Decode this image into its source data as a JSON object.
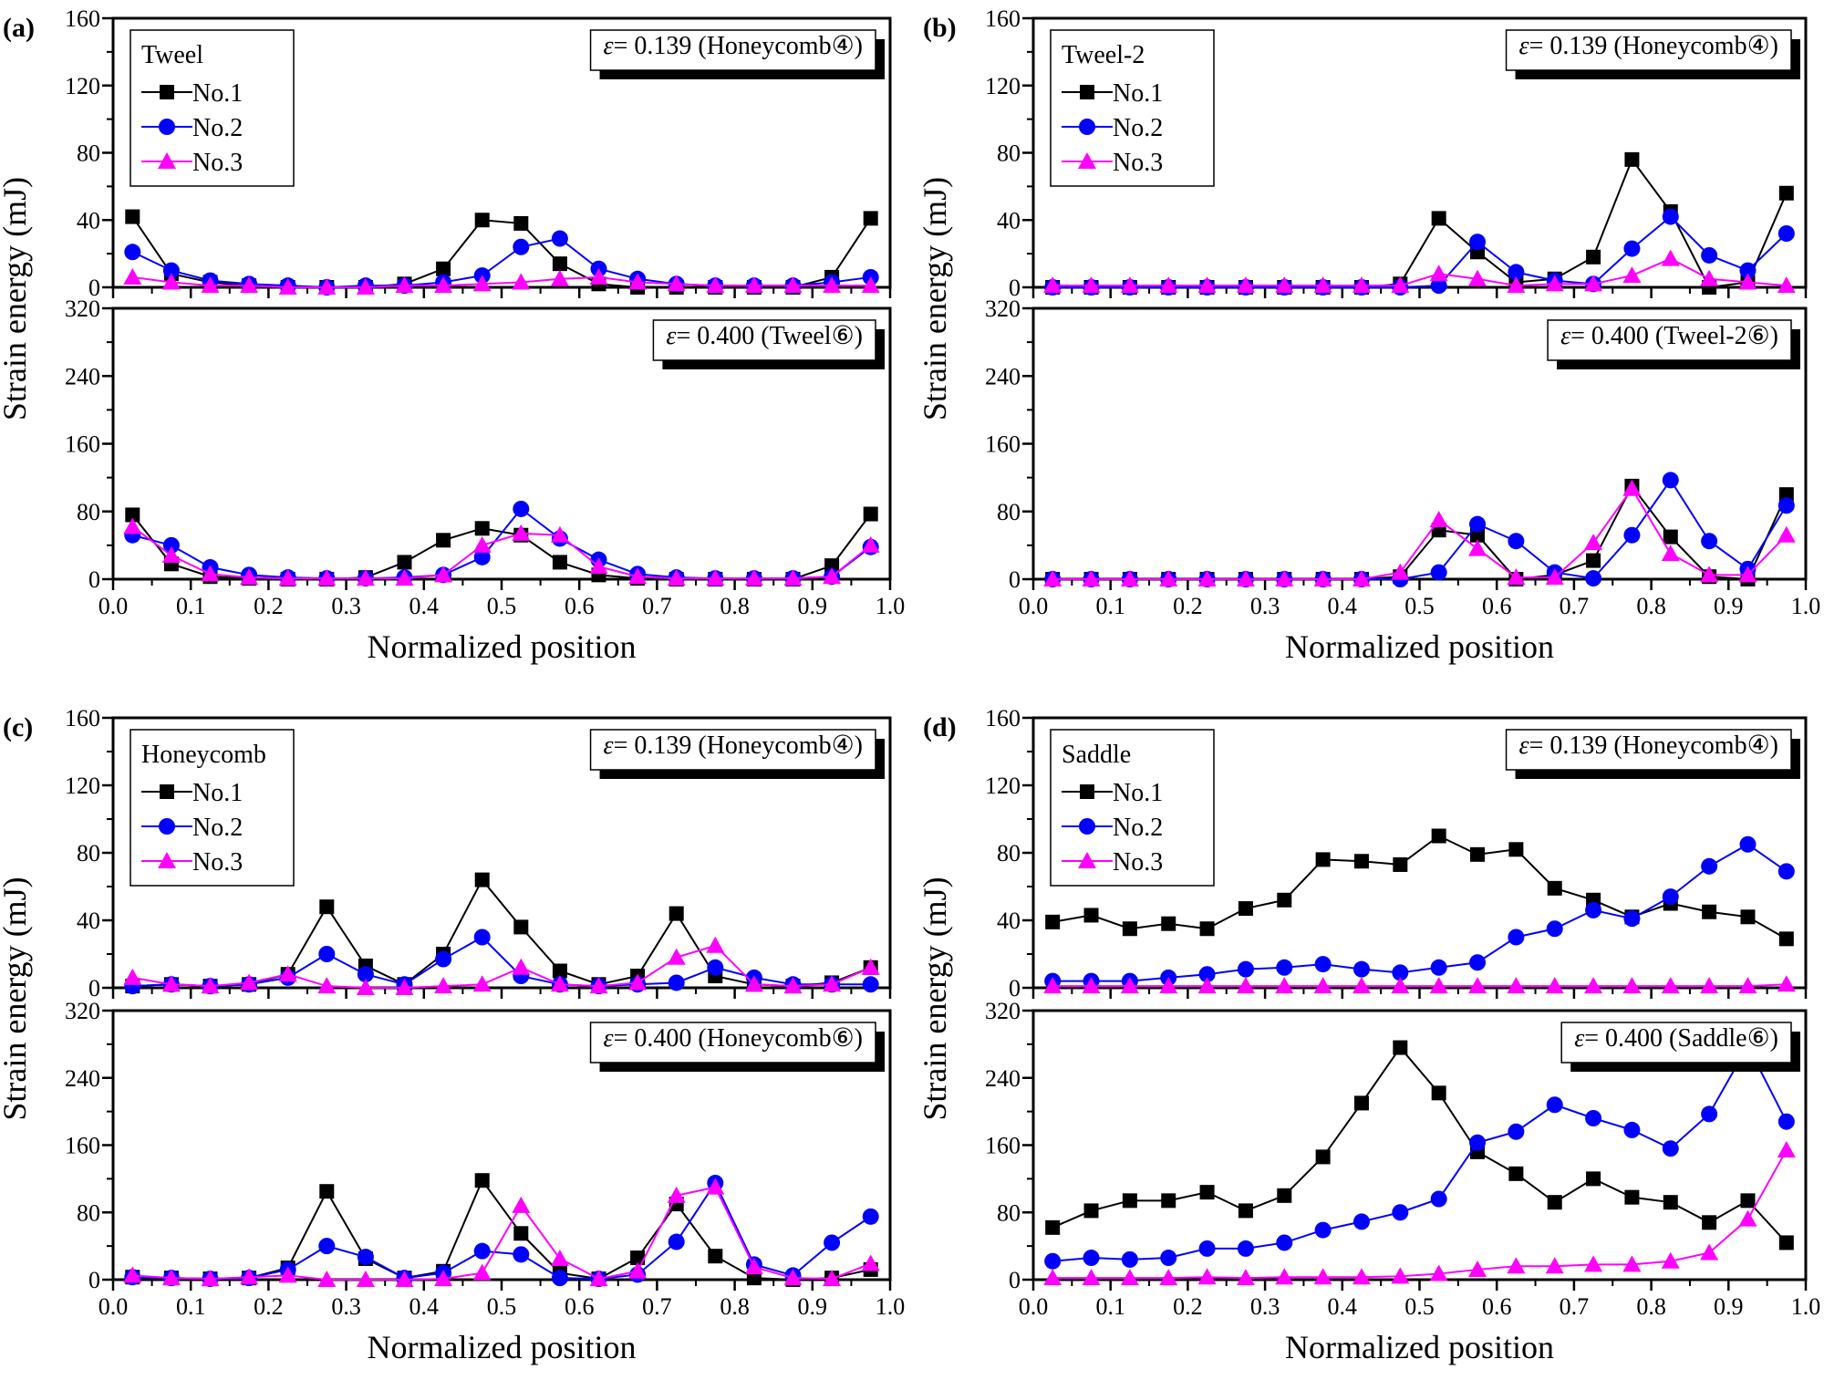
{
  "chart_data": [
    {
      "type": "line",
      "panel_label": "(a)",
      "legend_title": "Tweel",
      "xlabel": "Normalized position",
      "ylabel": "Strain energy (mJ)",
      "xlim": [
        0,
        1
      ],
      "xticks": [
        "0.0",
        "0.1",
        "0.2",
        "0.3",
        "0.4",
        "0.5",
        "0.6",
        "0.7",
        "0.8",
        "0.9",
        "1.0"
      ],
      "x": [
        0.025,
        0.075,
        0.125,
        0.175,
        0.225,
        0.275,
        0.325,
        0.375,
        0.425,
        0.475,
        0.525,
        0.575,
        0.625,
        0.675,
        0.725,
        0.775,
        0.825,
        0.875,
        0.925,
        0.975
      ],
      "legend_placement": "top-left",
      "subplots": [
        {
          "annotation_symbol": "ε",
          "annotation": "= 0.139 (Honeycomb④)",
          "ylim": [
            0,
            160
          ],
          "yticks": [
            "0",
            "40",
            "80",
            "120",
            "160"
          ],
          "series": [
            {
              "name": "No.1",
              "values": [
                42,
                8,
                3,
                1,
                0,
                0,
                0,
                2,
                11,
                40,
                38,
                14,
                2,
                0,
                0,
                0,
                0,
                0,
                6,
                41
              ]
            },
            {
              "name": "No.2",
              "values": [
                21,
                10,
                4,
                2,
                1,
                0,
                1,
                1,
                3,
                7,
                24,
                29,
                11,
                5,
                2,
                1,
                1,
                1,
                3,
                6
              ]
            },
            {
              "name": "No.3",
              "values": [
                6,
                3,
                1,
                1,
                0,
                0,
                0,
                1,
                1,
                2,
                3,
                5,
                6,
                3,
                2,
                1,
                1,
                1,
                1,
                1
              ]
            }
          ]
        },
        {
          "annotation_symbol": "ε",
          "annotation": "= 0.400 (Tweel⑥)",
          "ylim": [
            0,
            320
          ],
          "yticks": [
            "0",
            "80",
            "160",
            "240",
            "320"
          ],
          "series": [
            {
              "name": "No.1",
              "values": [
                76,
                18,
                3,
                1,
                0,
                0,
                2,
                20,
                46,
                60,
                52,
                20,
                5,
                1,
                0,
                0,
                0,
                0,
                16,
                77
              ]
            },
            {
              "name": "No.2",
              "values": [
                52,
                40,
                14,
                5,
                2,
                1,
                1,
                2,
                5,
                26,
                83,
                48,
                23,
                6,
                2,
                1,
                1,
                1,
                3,
                38
              ]
            },
            {
              "name": "No.3",
              "values": [
                62,
                28,
                6,
                2,
                1,
                1,
                1,
                1,
                5,
                40,
                54,
                52,
                15,
                3,
                1,
                1,
                1,
                1,
                3,
                40
              ]
            }
          ]
        }
      ]
    },
    {
      "type": "line",
      "panel_label": "(b)",
      "legend_title": "Tweel-2",
      "xlabel": "Normalized position",
      "ylabel": "Strain energy (mJ)",
      "xlim": [
        0,
        1
      ],
      "xticks": [
        "0.0",
        "0.1",
        "0.2",
        "0.3",
        "0.4",
        "0.5",
        "0.6",
        "0.7",
        "0.8",
        "0.9",
        "1.0"
      ],
      "x": [
        0.025,
        0.075,
        0.125,
        0.175,
        0.225,
        0.275,
        0.325,
        0.375,
        0.425,
        0.475,
        0.525,
        0.575,
        0.625,
        0.675,
        0.725,
        0.775,
        0.825,
        0.875,
        0.925,
        0.975
      ],
      "legend_placement": "top-left",
      "subplots": [
        {
          "annotation_symbol": "ε",
          "annotation": "= 0.139 (Honeycomb④)",
          "ylim": [
            0,
            160
          ],
          "yticks": [
            "0",
            "40",
            "80",
            "120",
            "160"
          ],
          "series": [
            {
              "name": "No.1",
              "values": [
                0,
                0,
                0,
                0,
                0,
                0,
                0,
                0,
                0,
                2,
                41,
                21,
                3,
                5,
                18,
                76,
                45,
                0,
                3,
                56
              ]
            },
            {
              "name": "No.2",
              "values": [
                0,
                0,
                0,
                0,
                0,
                0,
                0,
                0,
                0,
                0,
                1,
                27,
                9,
                4,
                2,
                23,
                42,
                19,
                10,
                32
              ]
            },
            {
              "name": "No.3",
              "values": [
                1,
                1,
                1,
                1,
                1,
                1,
                1,
                1,
                1,
                1,
                8,
                5,
                1,
                2,
                2,
                7,
                17,
                5,
                3,
                1
              ]
            }
          ]
        },
        {
          "annotation_symbol": "ε",
          "annotation": "= 0.400 (Tweel-2⑥)",
          "ylim": [
            0,
            320
          ],
          "yticks": [
            "0",
            "80",
            "160",
            "240",
            "320"
          ],
          "series": [
            {
              "name": "No.1",
              "values": [
                0,
                0,
                0,
                0,
                0,
                0,
                0,
                0,
                0,
                3,
                58,
                52,
                0,
                5,
                22,
                110,
                50,
                3,
                0,
                100
              ]
            },
            {
              "name": "No.2",
              "values": [
                0,
                0,
                0,
                0,
                0,
                0,
                0,
                0,
                0,
                0,
                8,
                65,
                45,
                8,
                1,
                52,
                117,
                45,
                12,
                87
              ]
            },
            {
              "name": "No.3",
              "values": [
                0,
                0,
                0,
                0,
                0,
                0,
                0,
                0,
                0,
                8,
                70,
                36,
                2,
                2,
                43,
                107,
                30,
                5,
                5,
                52
              ]
            }
          ]
        }
      ]
    },
    {
      "type": "line",
      "panel_label": "(c)",
      "legend_title": "Honeycomb",
      "xlabel": "Normalized position",
      "ylabel": "Strain energy (mJ)",
      "xlim": [
        0,
        1
      ],
      "xticks": [
        "0.0",
        "0.1",
        "0.2",
        "0.3",
        "0.4",
        "0.5",
        "0.6",
        "0.7",
        "0.8",
        "0.9",
        "1.0"
      ],
      "x": [
        0.025,
        0.075,
        0.125,
        0.175,
        0.225,
        0.275,
        0.325,
        0.375,
        0.425,
        0.475,
        0.525,
        0.575,
        0.625,
        0.675,
        0.725,
        0.775,
        0.825,
        0.875,
        0.925,
        0.975
      ],
      "legend_placement": "top-left",
      "subplots": [
        {
          "annotation_symbol": "ε",
          "annotation": "= 0.139 (Honeycomb④)",
          "ylim": [
            0,
            160
          ],
          "yticks": [
            "0",
            "40",
            "80",
            "120",
            "160"
          ],
          "series": [
            {
              "name": "No.1",
              "values": [
                1,
                2,
                1,
                2,
                8,
                48,
                13,
                2,
                20,
                64,
                36,
                10,
                2,
                7,
                44,
                7,
                2,
                1,
                3,
                12
              ]
            },
            {
              "name": "No.2",
              "values": [
                1,
                2,
                1,
                2,
                6,
                20,
                8,
                2,
                17,
                30,
                7,
                2,
                1,
                2,
                3,
                12,
                6,
                2,
                2,
                2
              ]
            },
            {
              "name": "No.3",
              "values": [
                6,
                2,
                1,
                3,
                8,
                1,
                0,
                0,
                1,
                2,
                12,
                2,
                1,
                3,
                18,
                25,
                2,
                1,
                2,
                12
              ]
            }
          ]
        },
        {
          "annotation_symbol": "ε",
          "annotation": "= 0.400 (Honeycomb⑥)",
          "ylim": [
            0,
            320
          ],
          "yticks": [
            "0",
            "80",
            "160",
            "240",
            "320"
          ],
          "series": [
            {
              "name": "No.1",
              "values": [
                3,
                2,
                1,
                2,
                14,
                105,
                25,
                2,
                10,
                118,
                55,
                8,
                1,
                26,
                90,
                28,
                2,
                0,
                2,
                12
              ]
            },
            {
              "name": "No.2",
              "values": [
                3,
                2,
                1,
                2,
                12,
                40,
                27,
                2,
                8,
                34,
                30,
                2,
                1,
                6,
                45,
                115,
                18,
                5,
                44,
                75
              ]
            },
            {
              "name": "No.3",
              "values": [
                5,
                2,
                1,
                3,
                5,
                0,
                0,
                0,
                1,
                8,
                88,
                25,
                1,
                10,
                100,
                110,
                15,
                2,
                1,
                19
              ]
            }
          ]
        }
      ]
    },
    {
      "type": "line",
      "panel_label": "(d)",
      "legend_title": "Saddle",
      "xlabel": "Normalized position",
      "ylabel": "Strain energy (mJ)",
      "xlim": [
        0,
        1
      ],
      "xticks": [
        "0.0",
        "0.1",
        "0.2",
        "0.3",
        "0.4",
        "0.5",
        "0.6",
        "0.7",
        "0.8",
        "0.9",
        "1.0"
      ],
      "x": [
        0.025,
        0.075,
        0.125,
        0.175,
        0.225,
        0.275,
        0.325,
        0.375,
        0.425,
        0.475,
        0.525,
        0.575,
        0.625,
        0.675,
        0.725,
        0.775,
        0.825,
        0.875,
        0.925,
        0.975
      ],
      "legend_placement": "top-left",
      "subplots": [
        {
          "annotation_symbol": "ε",
          "annotation": "= 0.139 (Honeycomb④)",
          "ylim": [
            0,
            160
          ],
          "yticks": [
            "0",
            "40",
            "80",
            "120",
            "160"
          ],
          "series": [
            {
              "name": "No.1",
              "values": [
                39,
                43,
                35,
                38,
                35,
                47,
                52,
                76,
                75,
                73,
                90,
                79,
                82,
                59,
                52,
                42,
                50,
                45,
                42,
                29
              ]
            },
            {
              "name": "No.2",
              "values": [
                4,
                4,
                4,
                6,
                8,
                11,
                12,
                14,
                11,
                9,
                12,
                15,
                30,
                35,
                46,
                41,
                54,
                72,
                85,
                69
              ]
            },
            {
              "name": "No.3",
              "values": [
                1,
                1,
                1,
                1,
                1,
                1,
                1,
                1,
                1,
                1,
                1,
                1,
                1,
                1,
                1,
                1,
                1,
                1,
                1,
                2
              ]
            }
          ]
        },
        {
          "annotation_symbol": "ε",
          "annotation": "= 0.400 (Saddle⑥)",
          "ylim": [
            0,
            320
          ],
          "yticks": [
            "0",
            "80",
            "160",
            "240",
            "320"
          ],
          "series": [
            {
              "name": "No.1",
              "values": [
                62,
                82,
                94,
                94,
                104,
                82,
                100,
                146,
                210,
                276,
                222,
                152,
                126,
                92,
                120,
                98,
                92,
                68,
                94,
                44
              ]
            },
            {
              "name": "No.2",
              "values": [
                22,
                26,
                24,
                26,
                37,
                37,
                44,
                59,
                69,
                80,
                96,
                163,
                176,
                208,
                192,
                178,
                156,
                197,
                278,
                188
              ]
            },
            {
              "name": "No.3",
              "values": [
                2,
                2,
                2,
                2,
                3,
                2,
                3,
                3,
                3,
                4,
                7,
                12,
                16,
                16,
                18,
                18,
                22,
                32,
                72,
                154
              ]
            }
          ]
        }
      ]
    }
  ],
  "series_style": [
    {
      "color": "#000000",
      "marker": "square"
    },
    {
      "color": "#0000ff",
      "marker": "circle"
    },
    {
      "color": "#ff00ff",
      "marker": "triangle"
    }
  ]
}
